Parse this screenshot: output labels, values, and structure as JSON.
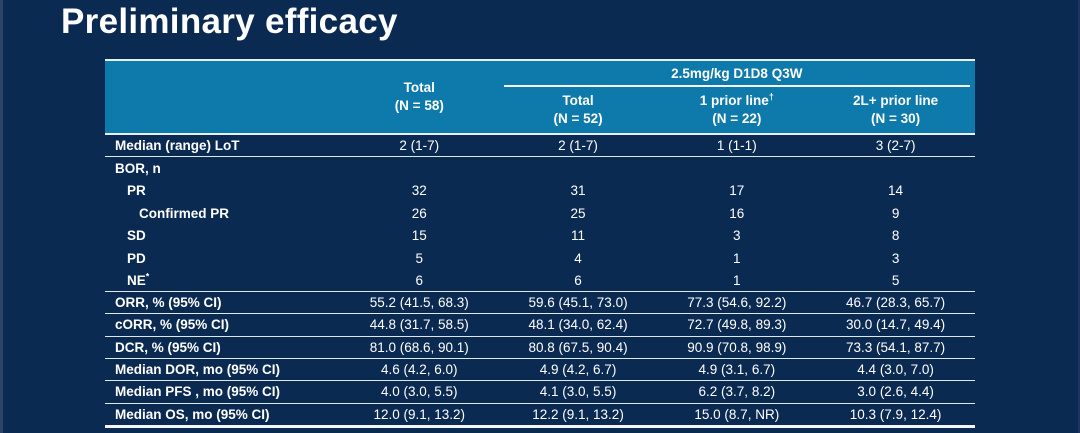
{
  "slide": {
    "title": "Preliminary efficacy"
  },
  "colors": {
    "slide_bg": "#0b2a52",
    "header_bg": "#0e7aab",
    "text": "#ffffff",
    "rule": "#dfe8f1"
  },
  "table": {
    "group_header": "2.5mg/kg D1D8 Q3W",
    "col_total": {
      "line1": "Total",
      "line2": "(N = 58)"
    },
    "subcols": [
      {
        "line1": "Total",
        "sup": "",
        "line2": "(N = 52)"
      },
      {
        "line1": "1 prior line",
        "sup": "†",
        "line2": "(N = 22)"
      },
      {
        "line1": "2L+ prior line",
        "sup": "",
        "line2": "(N = 30)"
      }
    ],
    "rows": [
      {
        "label": "Median (range) LoT",
        "sup": "",
        "indent": 0,
        "rule": "thin",
        "values": [
          "2 (1-7)",
          "2 (1-7)",
          "1 (1-1)",
          "3 (2-7)"
        ]
      },
      {
        "label": "BOR, n",
        "sup": "",
        "indent": 0,
        "rule": "none",
        "values": [
          "",
          "",
          "",
          ""
        ]
      },
      {
        "label": "PR",
        "sup": "",
        "indent": 1,
        "rule": "none",
        "values": [
          "32",
          "31",
          "17",
          "14"
        ]
      },
      {
        "label": "Confirmed PR",
        "sup": "",
        "indent": 2,
        "rule": "none",
        "values": [
          "26",
          "25",
          "16",
          "9"
        ]
      },
      {
        "label": "SD",
        "sup": "",
        "indent": 1,
        "rule": "none",
        "values": [
          "15",
          "11",
          "3",
          "8"
        ]
      },
      {
        "label": "PD",
        "sup": "",
        "indent": 1,
        "rule": "none",
        "values": [
          "5",
          "4",
          "1",
          "3"
        ]
      },
      {
        "label": "NE",
        "sup": "*",
        "indent": 1,
        "rule": "thin",
        "values": [
          "6",
          "6",
          "1",
          "5"
        ]
      },
      {
        "label": "ORR, % (95% CI)",
        "sup": "",
        "indent": 0,
        "rule": "thin",
        "values": [
          "55.2 (41.5, 68.3)",
          "59.6 (45.1, 73.0)",
          "77.3 (54.6, 92.2)",
          "46.7 (28.3, 65.7)"
        ]
      },
      {
        "label": "cORR, % (95% CI)",
        "sup": "",
        "indent": 0,
        "rule": "thin",
        "values": [
          "44.8 (31.7, 58.5)",
          "48.1 (34.0, 62.4)",
          "72.7 (49.8, 89.3)",
          "30.0 (14.7, 49.4)"
        ]
      },
      {
        "label": "DCR, % (95% CI)",
        "sup": "",
        "indent": 0,
        "rule": "thin",
        "values": [
          "81.0 (68.6, 90.1)",
          "80.8 (67.5, 90.4)",
          "90.9 (70.8, 98.9)",
          "73.3 (54.1, 87.7)"
        ]
      },
      {
        "label": "Median DOR, mo (95% CI)",
        "sup": "",
        "indent": 0,
        "rule": "thin",
        "values": [
          "4.6 (4.2, 6.0)",
          "4.9 (4.2, 6.7)",
          "4.9 (3.1, 6.7)",
          "4.4 (3.0, 7.0)"
        ]
      },
      {
        "label": "Median PFS , mo (95% CI)",
        "sup": "",
        "indent": 0,
        "rule": "thin",
        "values": [
          "4.0 (3.0, 5.5)",
          "4.1 (3.0, 5.5)",
          "6.2 (3.7, 8.2)",
          "3.0 (2.6, 4.4)"
        ]
      },
      {
        "label": "Median OS, mo (95% CI)",
        "sup": "",
        "indent": 0,
        "rule": "thick",
        "values": [
          "12.0 (9.1, 13.2)",
          "12.2 (9.1, 13.2)",
          "15.0 (8.7, NR)",
          "10.3 (7.9, 12.4)"
        ]
      }
    ]
  }
}
